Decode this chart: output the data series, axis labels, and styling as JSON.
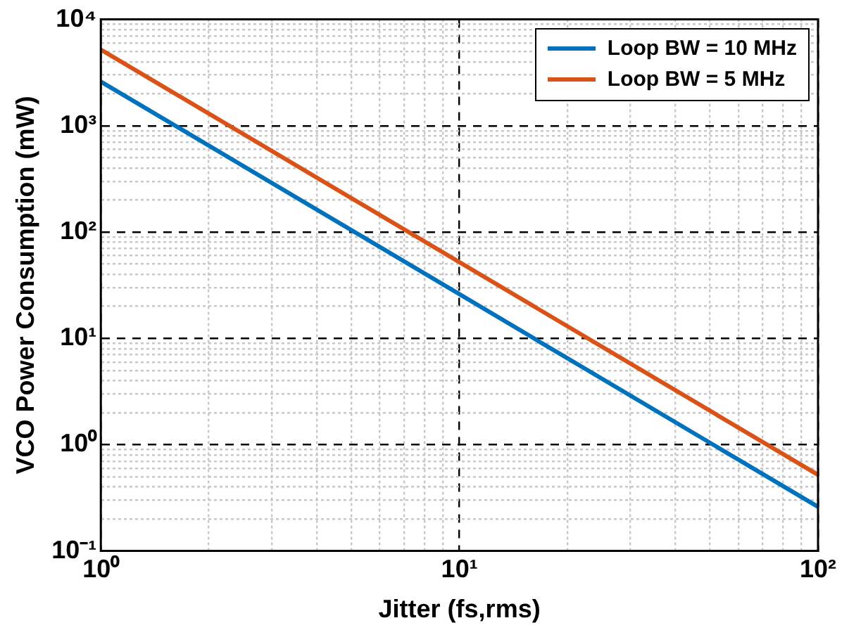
{
  "chart_data": {
    "type": "line",
    "xlabel": "Jitter (fs,rms)",
    "ylabel": "VCO Power Consumption (mW)",
    "x": [
      1,
      100
    ],
    "series": [
      {
        "name": "Loop BW = 10 MHz",
        "color": "#0072bd",
        "values": [
          2600,
          0.26
        ]
      },
      {
        "name": "Loop BW = 5 MHz",
        "color": "#d95319",
        "values": [
          5200,
          0.52
        ]
      }
    ],
    "log": "xy",
    "xlim": [
      1,
      100
    ],
    "ylim": [
      0.1,
      10000
    ],
    "xticks": [
      {
        "value": 1,
        "label": "10⁰"
      },
      {
        "value": 10,
        "label": "10¹"
      },
      {
        "value": 100,
        "label": "10²"
      }
    ],
    "yticks": [
      {
        "value": 0.1,
        "label": "10⁻¹"
      },
      {
        "value": 1,
        "label": "10⁰"
      },
      {
        "value": 10,
        "label": "10¹"
      },
      {
        "value": 100,
        "label": "10²"
      },
      {
        "value": 1000,
        "label": "10³"
      },
      {
        "value": 10000,
        "label": "10⁴"
      }
    ],
    "grid": true,
    "legend": "top right",
    "marker": "none",
    "line_style": "solid"
  }
}
